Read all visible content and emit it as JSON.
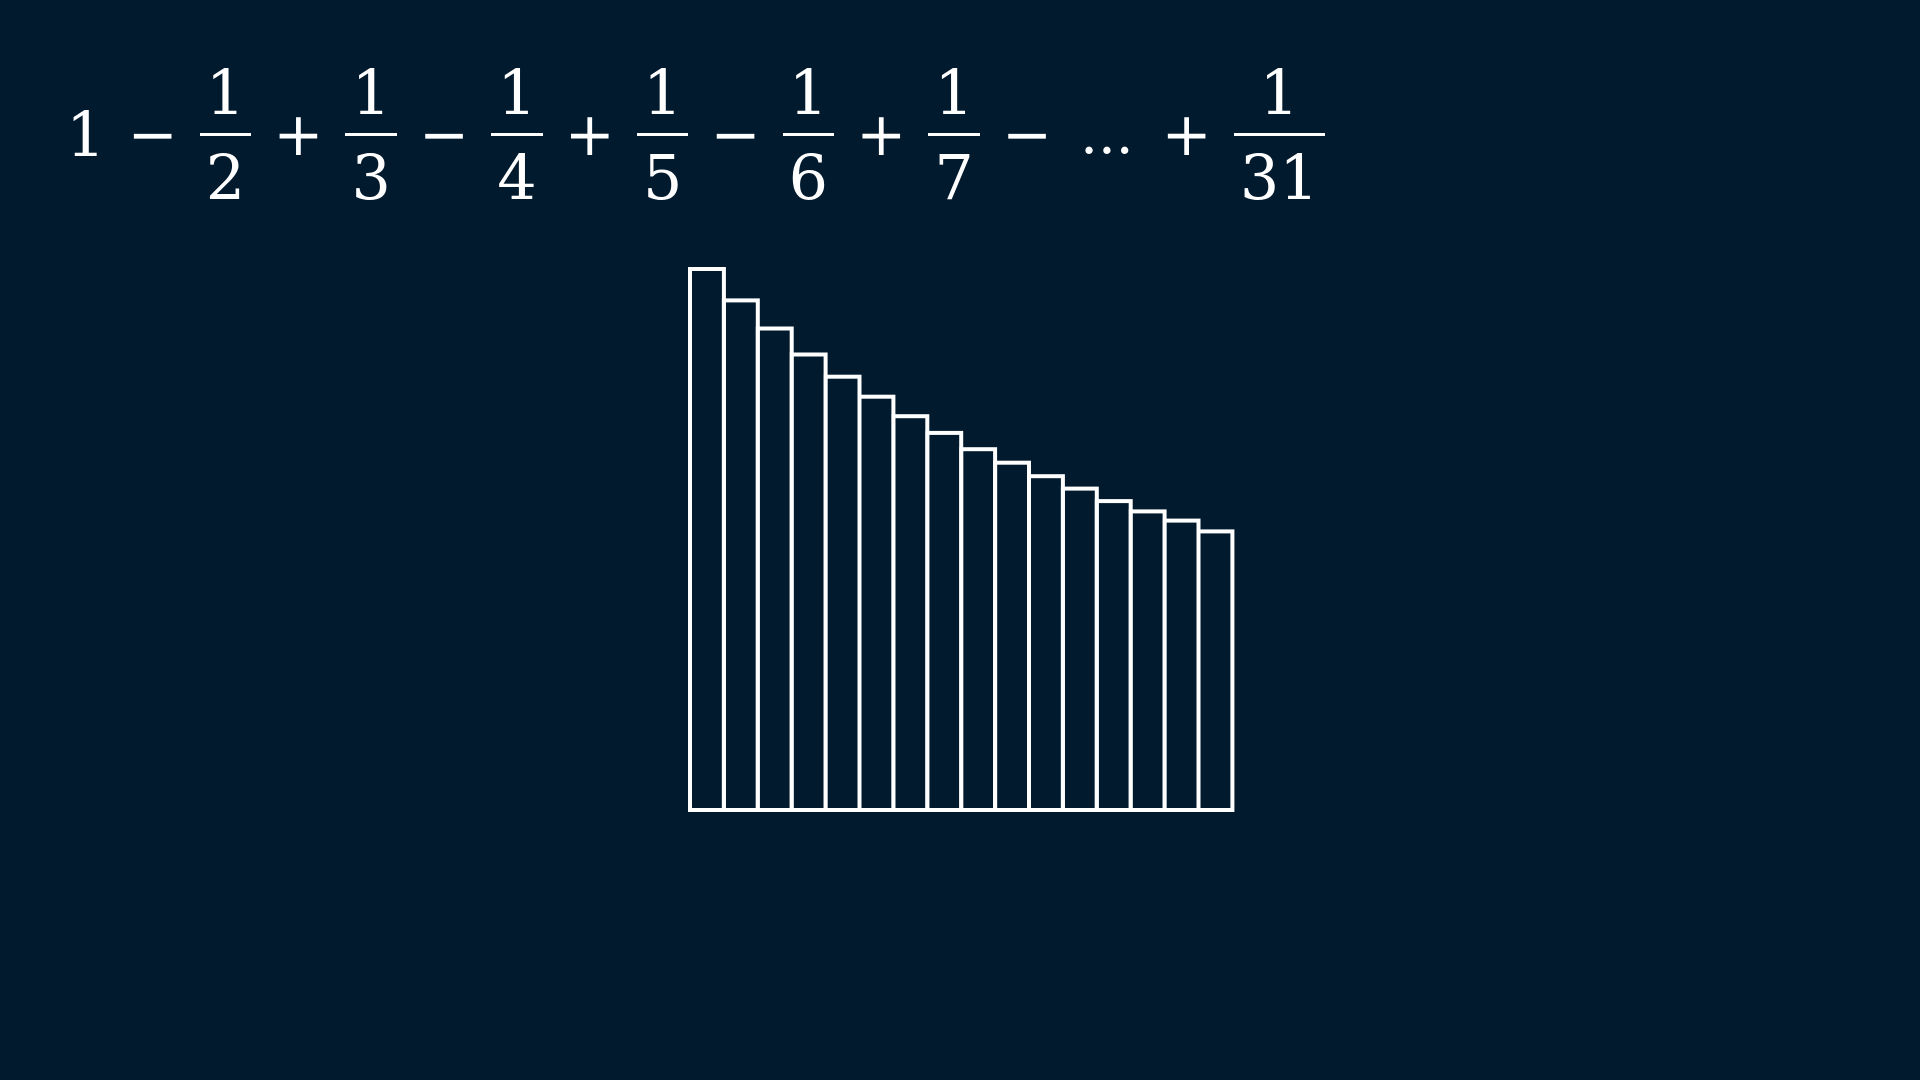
{
  "formula": {
    "lead": "1",
    "terms": [
      {
        "op": "−",
        "num": "1",
        "den": "2"
      },
      {
        "op": "+",
        "num": "1",
        "den": "3"
      },
      {
        "op": "−",
        "num": "1",
        "den": "4"
      },
      {
        "op": "+",
        "num": "1",
        "den": "5"
      },
      {
        "op": "−",
        "num": "1",
        "den": "6"
      },
      {
        "op": "+",
        "num": "1",
        "den": "7"
      }
    ],
    "trail_op": "−",
    "ellipsis": "...",
    "final_op": "+",
    "final_num": "1",
    "final_den": "31"
  },
  "diagram": {
    "stroke_color": "#ffffff",
    "background_color": "#011a2e",
    "bar_relative_heights": [
      1.0,
      0.942,
      0.89,
      0.842,
      0.801,
      0.764,
      0.728,
      0.697,
      0.667,
      0.642,
      0.617,
      0.594,
      0.571,
      0.552,
      0.535,
      0.515
    ]
  }
}
